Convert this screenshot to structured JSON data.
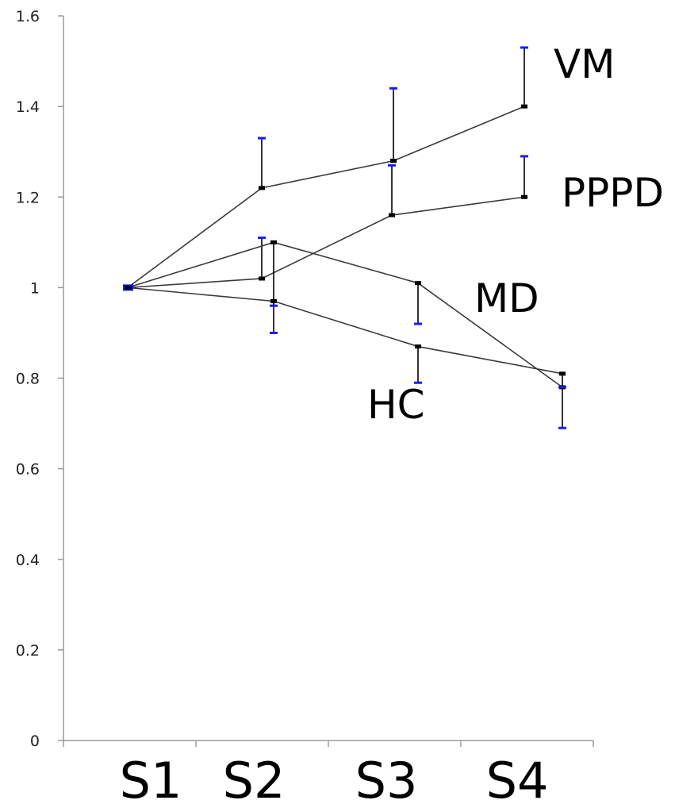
{
  "chart_data": {
    "type": "line",
    "title": "",
    "xlabel": "",
    "ylabel": "",
    "categories": [
      "S1",
      "S2",
      "S3",
      "S4"
    ],
    "ylim": [
      0,
      1.6
    ],
    "yticks": [
      "0",
      "0.2",
      "0.4",
      "0.6",
      "0.8",
      "1",
      "1.2",
      "1.4",
      "1.6"
    ],
    "grid": false,
    "legend": "none (series labelled directly on chart)",
    "series": [
      {
        "name": "VM",
        "values": [
          1.0,
          1.22,
          1.28,
          1.4
        ],
        "error_upper": [
          1.0,
          1.33,
          1.44,
          1.53
        ],
        "label_color": "#000000"
      },
      {
        "name": "PPPD",
        "values": [
          1.0,
          1.02,
          1.16,
          1.2
        ],
        "error_upper": [
          1.0,
          1.11,
          1.27,
          1.29
        ],
        "label_color": "#000000"
      },
      {
        "name": "MD",
        "values": [
          1.0,
          1.1,
          1.01,
          0.78
        ],
        "error_lower": [
          1.0,
          0.9,
          0.92,
          0.69
        ],
        "label_color": "#000000"
      },
      {
        "name": "HC",
        "values": [
          1.0,
          0.97,
          0.87,
          0.81
        ],
        "error_lower": [
          1.0,
          0.96,
          0.79,
          0.78
        ],
        "label_color": "#000000"
      }
    ],
    "colors": {
      "line": "#3a3a3a",
      "error_bar": "#000000",
      "error_cap": "#1a1aff",
      "axis": "#9a9a9a"
    }
  }
}
